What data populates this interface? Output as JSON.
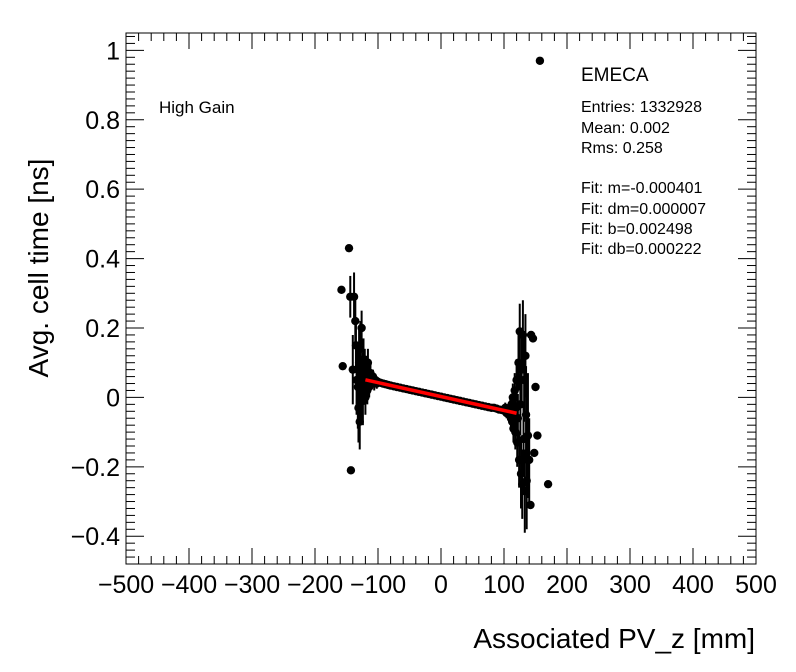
{
  "chart_data": {
    "type": "scatter",
    "title": "",
    "xlabel": "Associated PV_z [mm]",
    "ylabel": "Avg. cell time [ns]",
    "xlim": [
      -500,
      500
    ],
    "ylim": [
      -0.48,
      1.05
    ],
    "x_ticks": [
      -500,
      -400,
      -300,
      -200,
      -100,
      0,
      100,
      200,
      300,
      400,
      500
    ],
    "y_ticks": [
      -0.4,
      -0.2,
      0,
      0.2,
      0.4,
      0.6,
      0.8,
      1
    ],
    "x_tick_labels": [
      "−500",
      "−400",
      "−300",
      "−200",
      "−100",
      "0",
      "100",
      "200",
      "300",
      "400",
      "500"
    ],
    "y_tick_labels": [
      "−0.4",
      "−0.2",
      "0",
      "0.2",
      "0.4",
      "0.6",
      "0.8",
      "1"
    ],
    "gain_label": "High Gain",
    "stats": {
      "title": "EMECA",
      "lines": [
        "Entries: 1332928",
        "Mean: 0.002",
        "Rms: 0.258"
      ],
      "fit_lines": [
        "Fit: m=-0.000401",
        "Fit: dm=0.000007",
        "Fit: b=0.002498",
        "Fit: db=0.000222"
      ]
    },
    "fit": {
      "m": -0.000401,
      "b": 0.002498,
      "x_range": [
        -120,
        120
      ],
      "color": "#ff0000"
    },
    "marker_color": "#000000",
    "points": [
      {
        "x": -158,
        "y": 0.31,
        "err": 0.0
      },
      {
        "x": -156,
        "y": 0.09,
        "err": 0.0
      },
      {
        "x": -146,
        "y": 0.43,
        "err": 0.0
      },
      {
        "x": -144,
        "y": 0.29,
        "err": 0.06
      },
      {
        "x": -140,
        "y": 0.08,
        "err": 0.1
      },
      {
        "x": -143,
        "y": -0.21,
        "err": 0.0
      },
      {
        "x": -138,
        "y": 0.29,
        "err": 0.07
      },
      {
        "x": -136,
        "y": 0.22,
        "err": 0.08
      },
      {
        "x": -135,
        "y": 0.15,
        "err": 0.08
      },
      {
        "x": -134,
        "y": 0.05,
        "err": 0.1
      },
      {
        "x": -132,
        "y": 0.03,
        "err": 0.12
      },
      {
        "x": -131,
        "y": -0.03,
        "err": 0.1
      },
      {
        "x": -130,
        "y": 0.1,
        "err": 0.1
      },
      {
        "x": -129,
        "y": -0.07,
        "err": 0.08
      },
      {
        "x": -128,
        "y": 0.14,
        "err": 0.08
      },
      {
        "x": -127,
        "y": 0.01,
        "err": 0.08
      },
      {
        "x": -126,
        "y": 0.2,
        "err": 0.05
      },
      {
        "x": -125,
        "y": 0.07,
        "err": 0.06
      },
      {
        "x": -124,
        "y": -0.01,
        "err": 0.07
      },
      {
        "x": -123,
        "y": 0.11,
        "err": 0.06
      },
      {
        "x": -122,
        "y": 0.04,
        "err": 0.05
      },
      {
        "x": -121,
        "y": 0.09,
        "err": 0.05
      },
      {
        "x": -120,
        "y": 0.0,
        "err": 0.05
      },
      {
        "x": -119,
        "y": 0.08,
        "err": 0.04
      },
      {
        "x": -118,
        "y": 0.05,
        "err": 0.04
      },
      {
        "x": -117,
        "y": 0.02,
        "err": 0.04
      },
      {
        "x": -116,
        "y": 0.1,
        "err": 0.04
      },
      {
        "x": -115,
        "y": 0.06,
        "err": 0.03
      },
      {
        "x": -114,
        "y": 0.03,
        "err": 0.03
      },
      {
        "x": -112,
        "y": 0.07,
        "err": 0.03
      },
      {
        "x": -110,
        "y": 0.05,
        "err": 0.02
      },
      {
        "x": -108,
        "y": 0.06,
        "err": 0.02
      },
      {
        "x": -106,
        "y": 0.04,
        "err": 0.02
      },
      {
        "x": -104,
        "y": 0.05,
        "err": 0.015
      },
      {
        "x": -102,
        "y": 0.04,
        "err": 0.015
      },
      {
        "x": -100,
        "y": 0.045,
        "err": 0.012
      },
      {
        "x": -96,
        "y": 0.042,
        "err": 0.01
      },
      {
        "x": -92,
        "y": 0.04,
        "err": 0.01
      },
      {
        "x": -88,
        "y": 0.038,
        "err": 0.008
      },
      {
        "x": -84,
        "y": 0.036,
        "err": 0.008
      },
      {
        "x": -80,
        "y": 0.034,
        "err": 0.007
      },
      {
        "x": -75,
        "y": 0.032,
        "err": 0.006
      },
      {
        "x": -70,
        "y": 0.03,
        "err": 0.006
      },
      {
        "x": -65,
        "y": 0.028,
        "err": 0.005
      },
      {
        "x": -60,
        "y": 0.026,
        "err": 0.005
      },
      {
        "x": -55,
        "y": 0.024,
        "err": 0.005
      },
      {
        "x": -50,
        "y": 0.022,
        "err": 0.004
      },
      {
        "x": -45,
        "y": 0.02,
        "err": 0.004
      },
      {
        "x": -40,
        "y": 0.018,
        "err": 0.004
      },
      {
        "x": -35,
        "y": 0.016,
        "err": 0.004
      },
      {
        "x": -30,
        "y": 0.014,
        "err": 0.004
      },
      {
        "x": -25,
        "y": 0.012,
        "err": 0.004
      },
      {
        "x": -20,
        "y": 0.01,
        "err": 0.004
      },
      {
        "x": -15,
        "y": 0.008,
        "err": 0.004
      },
      {
        "x": -10,
        "y": 0.006,
        "err": 0.004
      },
      {
        "x": -5,
        "y": 0.004,
        "err": 0.004
      },
      {
        "x": 0,
        "y": 0.002,
        "err": 0.004
      },
      {
        "x": 5,
        "y": 0.0,
        "err": 0.004
      },
      {
        "x": 10,
        "y": -0.002,
        "err": 0.004
      },
      {
        "x": 15,
        "y": -0.004,
        "err": 0.004
      },
      {
        "x": 20,
        "y": -0.006,
        "err": 0.004
      },
      {
        "x": 25,
        "y": -0.008,
        "err": 0.004
      },
      {
        "x": 30,
        "y": -0.01,
        "err": 0.004
      },
      {
        "x": 35,
        "y": -0.012,
        "err": 0.004
      },
      {
        "x": 40,
        "y": -0.014,
        "err": 0.004
      },
      {
        "x": 45,
        "y": -0.016,
        "err": 0.004
      },
      {
        "x": 50,
        "y": -0.018,
        "err": 0.004
      },
      {
        "x": 55,
        "y": -0.02,
        "err": 0.005
      },
      {
        "x": 60,
        "y": -0.022,
        "err": 0.005
      },
      {
        "x": 65,
        "y": -0.024,
        "err": 0.005
      },
      {
        "x": 70,
        "y": -0.026,
        "err": 0.006
      },
      {
        "x": 75,
        "y": -0.028,
        "err": 0.006
      },
      {
        "x": 80,
        "y": -0.03,
        "err": 0.007
      },
      {
        "x": 84,
        "y": -0.03,
        "err": 0.008
      },
      {
        "x": 88,
        "y": -0.032,
        "err": 0.008
      },
      {
        "x": 92,
        "y": -0.035,
        "err": 0.01
      },
      {
        "x": 96,
        "y": -0.036,
        "err": 0.01
      },
      {
        "x": 100,
        "y": -0.038,
        "err": 0.012
      },
      {
        "x": 102,
        "y": -0.03,
        "err": 0.015
      },
      {
        "x": 104,
        "y": -0.045,
        "err": 0.015
      },
      {
        "x": 106,
        "y": -0.04,
        "err": 0.02
      },
      {
        "x": 108,
        "y": -0.05,
        "err": 0.02
      },
      {
        "x": 110,
        "y": -0.03,
        "err": 0.025
      },
      {
        "x": 111,
        "y": -0.06,
        "err": 0.03
      },
      {
        "x": 112,
        "y": -0.02,
        "err": 0.03
      },
      {
        "x": 113,
        "y": -0.07,
        "err": 0.03
      },
      {
        "x": 114,
        "y": 0.0,
        "err": 0.04
      },
      {
        "x": 115,
        "y": -0.09,
        "err": 0.04
      },
      {
        "x": 116,
        "y": -0.04,
        "err": 0.05
      },
      {
        "x": 117,
        "y": 0.02,
        "err": 0.05
      },
      {
        "x": 118,
        "y": -0.1,
        "err": 0.05
      },
      {
        "x": 119,
        "y": -0.03,
        "err": 0.06
      },
      {
        "x": 120,
        "y": 0.05,
        "err": 0.06
      },
      {
        "x": 121,
        "y": -0.13,
        "err": 0.07
      },
      {
        "x": 122,
        "y": -0.06,
        "err": 0.07
      },
      {
        "x": 123,
        "y": 0.1,
        "err": 0.08
      },
      {
        "x": 124,
        "y": -0.18,
        "err": 0.08
      },
      {
        "x": 125,
        "y": 0.19,
        "err": 0.08
      },
      {
        "x": 126,
        "y": -0.02,
        "err": 0.09
      },
      {
        "x": 127,
        "y": -0.22,
        "err": 0.1
      },
      {
        "x": 128,
        "y": 0.08,
        "err": 0.1
      },
      {
        "x": 129,
        "y": -0.25,
        "err": 0.1
      },
      {
        "x": 130,
        "y": 0.18,
        "err": 0.1
      },
      {
        "x": 131,
        "y": -0.12,
        "err": 0.1
      },
      {
        "x": 132,
        "y": 0.05,
        "err": 0.12
      },
      {
        "x": 133,
        "y": -0.27,
        "err": 0.12
      },
      {
        "x": 134,
        "y": 0.12,
        "err": 0.12
      },
      {
        "x": 135,
        "y": -0.05,
        "err": 0.14
      },
      {
        "x": 136,
        "y": -0.24,
        "err": 0.14
      },
      {
        "x": 138,
        "y": -0.11,
        "err": 0.18
      },
      {
        "x": 140,
        "y": -0.18,
        "err": 0.12
      },
      {
        "x": 142,
        "y": -0.31,
        "err": 0.0
      },
      {
        "x": 143,
        "y": 0.18,
        "err": 0.0
      },
      {
        "x": 146,
        "y": 0.17,
        "err": 0.0
      },
      {
        "x": 148,
        "y": -0.16,
        "err": 0.0
      },
      {
        "x": 150,
        "y": 0.03,
        "err": 0.0
      },
      {
        "x": 153,
        "y": -0.11,
        "err": 0.0
      },
      {
        "x": 157,
        "y": 0.97,
        "err": 0.0
      },
      {
        "x": 170,
        "y": -0.25,
        "err": 0.0
      }
    ]
  }
}
